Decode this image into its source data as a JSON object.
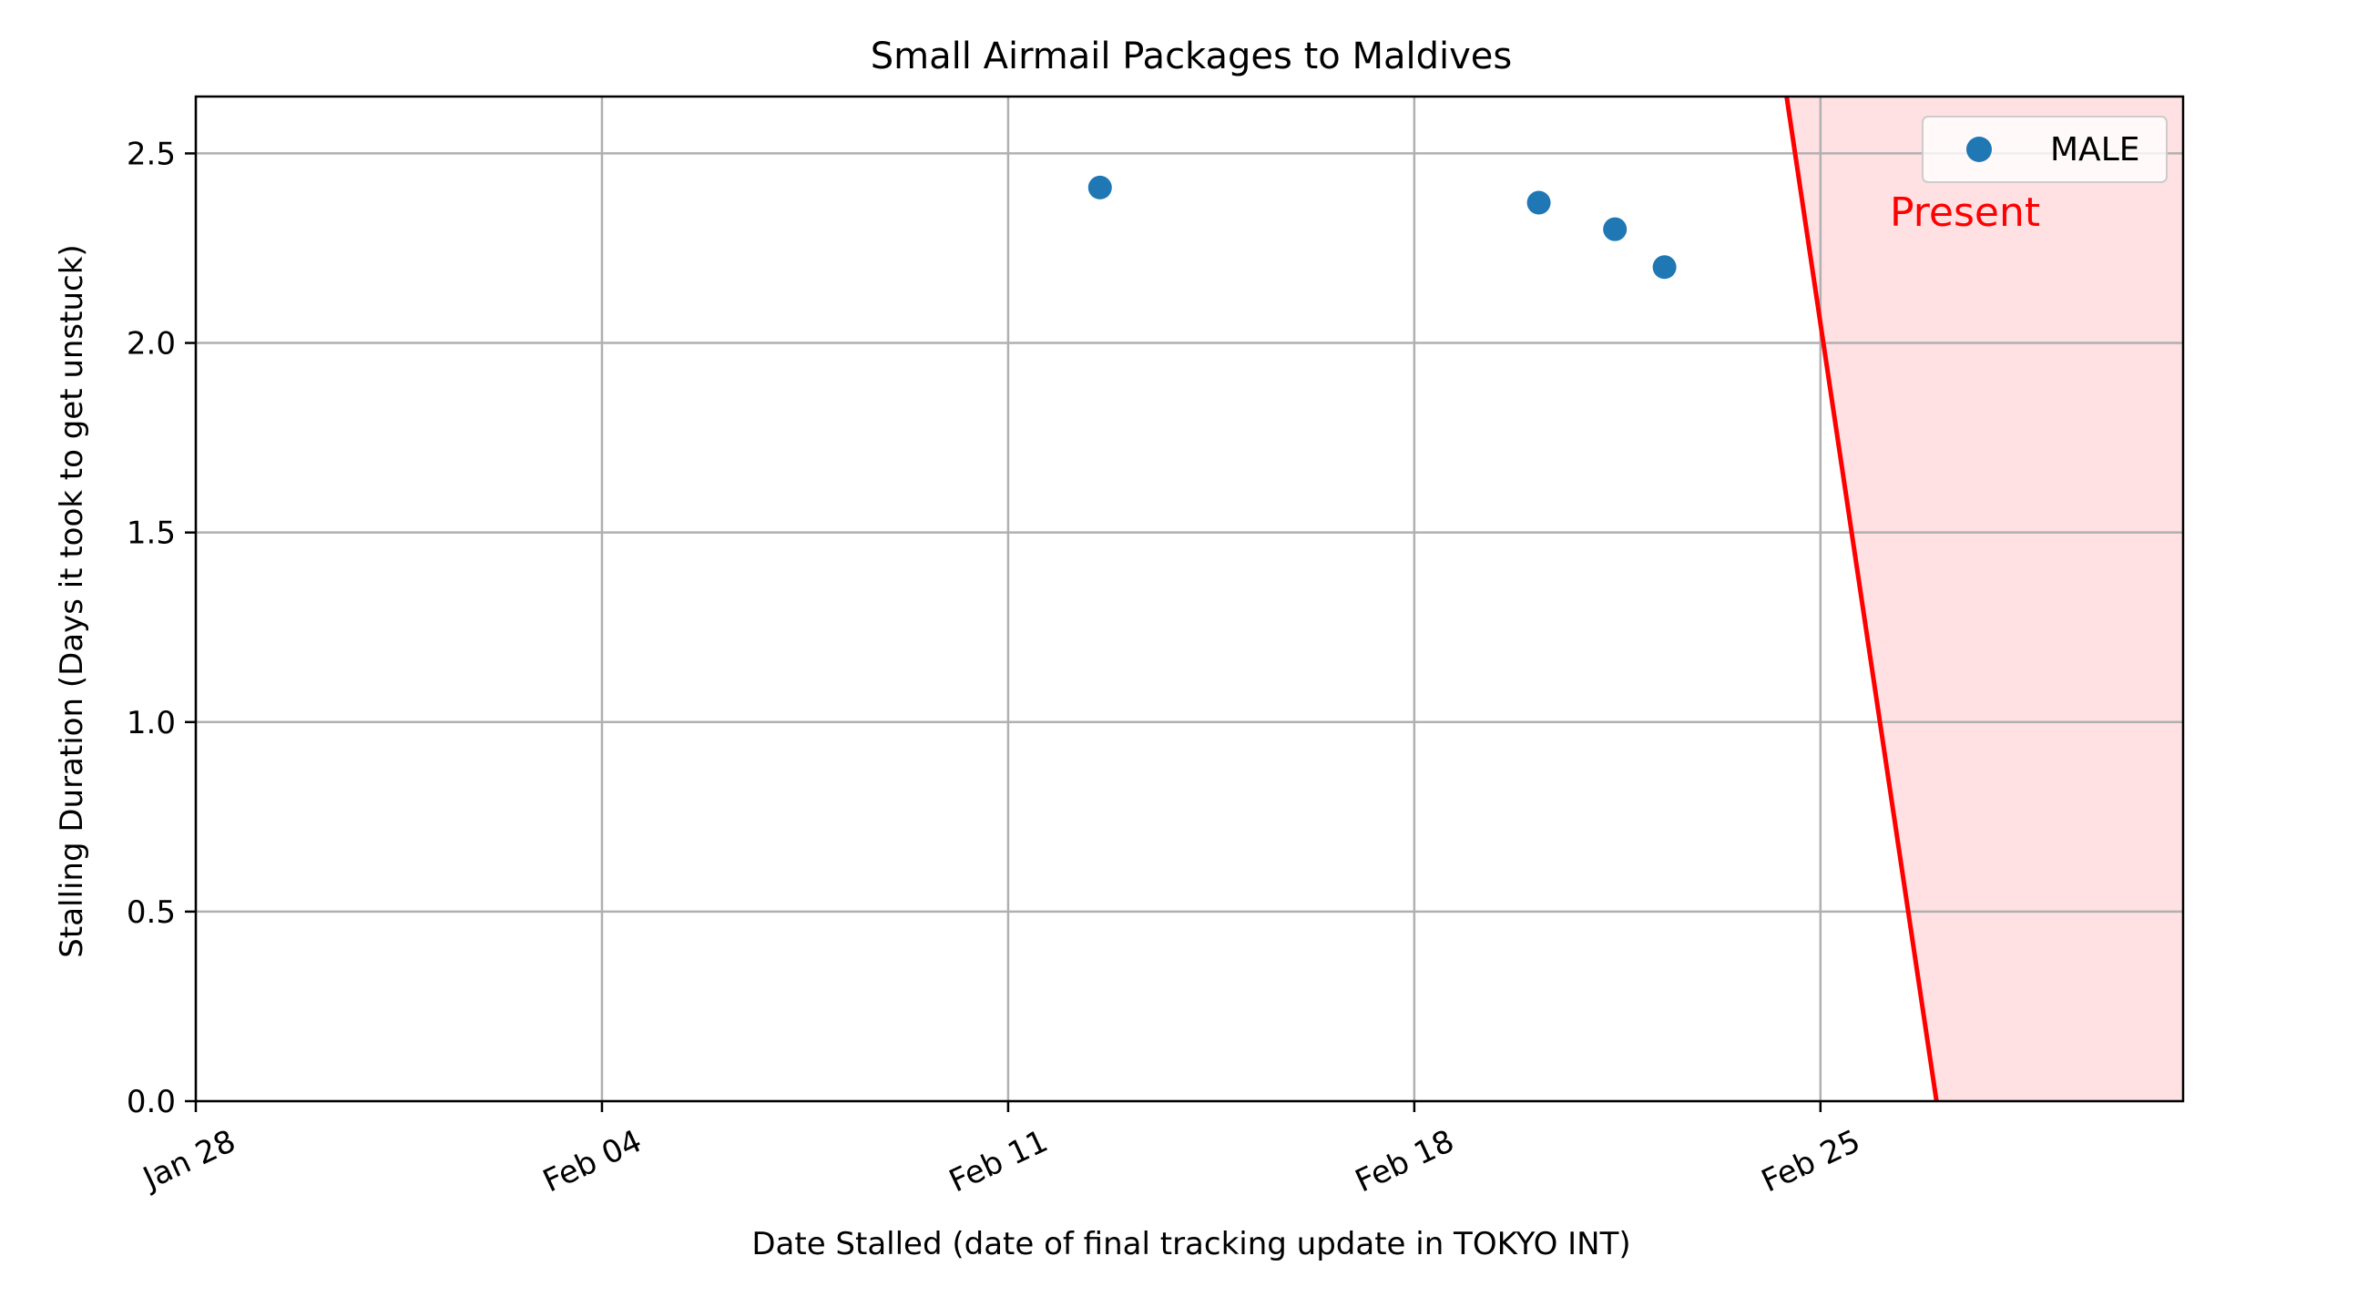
{
  "chart_data": {
    "type": "scatter",
    "title": "Small Airmail Packages to Maldives",
    "xlabel": "Date Stalled (date of final tracking update in TOKYO INT)",
    "ylabel": "Stalling Duration (Days it took to get unstuck)",
    "xlim": [
      "2024-01-28",
      "2024-03-02 06:00"
    ],
    "ylim": [
      0,
      2.65
    ],
    "grid": true,
    "legend_position": "top-right",
    "x_ticks": [
      {
        "date": "2024-01-28",
        "label": "Jan 28"
      },
      {
        "date": "2024-02-04",
        "label": "Feb 04"
      },
      {
        "date": "2024-02-11",
        "label": "Feb 11"
      },
      {
        "date": "2024-02-18",
        "label": "Feb 18"
      },
      {
        "date": "2024-02-25",
        "label": "Feb 25"
      }
    ],
    "y_ticks": [
      {
        "value": 0.0,
        "label": "0.0"
      },
      {
        "value": 0.5,
        "label": "0.5"
      },
      {
        "value": 1.0,
        "label": "1.0"
      },
      {
        "value": 1.5,
        "label": "1.5"
      },
      {
        "value": 2.0,
        "label": "2.0"
      },
      {
        "value": 2.5,
        "label": "2.5"
      }
    ],
    "series": [
      {
        "name": "MALE",
        "color": "#1f77b4",
        "points": [
          {
            "x": "2024-02-12 14:00",
            "y": 2.41
          },
          {
            "x": "2024-02-20 03:30",
            "y": 2.37
          },
          {
            "x": "2024-02-21 11:00",
            "y": 2.3
          },
          {
            "x": "2024-02-22 07:30",
            "y": 2.2
          }
        ]
      }
    ],
    "present_line": {
      "label": "Present",
      "color": "#ff0000",
      "shade_color": "#ffe0e3",
      "start": {
        "x": "2024-02-24 10:00",
        "y": 2.65
      },
      "end": {
        "x": "2024-02-27 00:00",
        "y": 0.0
      }
    }
  }
}
